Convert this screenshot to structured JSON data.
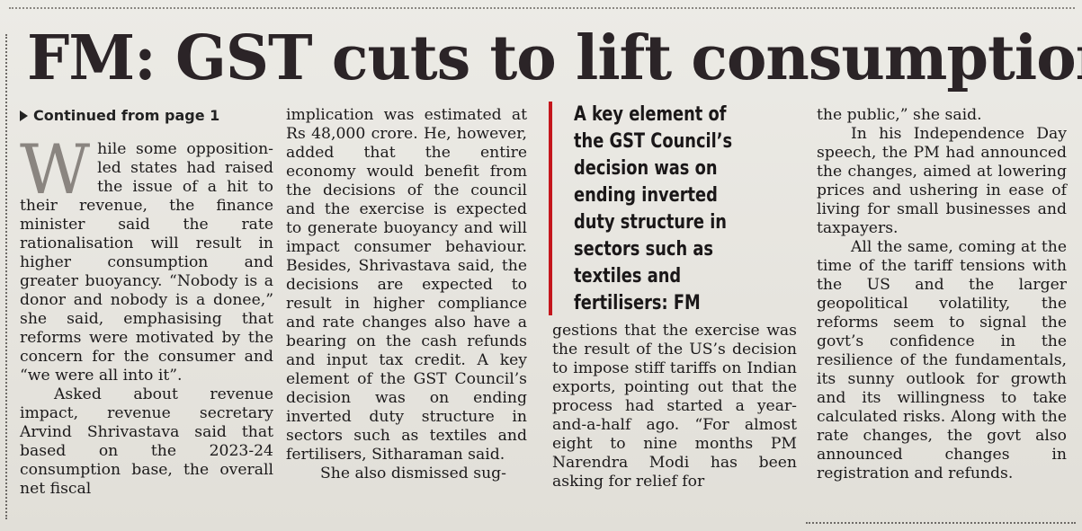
{
  "headline": "FM: GST cuts to lift consumption",
  "continued": "Continued from page 1",
  "col1": {
    "dropcap": "W",
    "p1": "hile some opposition-led states had raised the issue of a hit to their revenue, the finance minister said the rate rationalisation will result in higher consumption and greater buoyancy. “Nobody is a donor and nobody is a donee,” she said, emphasising that reforms were motivated by the concern for the consumer and “we were all into it”.",
    "p2": "Asked about revenue impact, revenue secretary Arvind Shrivastava said that based on the 2023-24 consumption base, the overall net fiscal"
  },
  "col2": {
    "p1": "implication was estimated at Rs 48,000 crore. He, however, added that the entire economy would benefit from the decisions of the council and the exercise is expected to generate buoyancy and will impact consumer behaviour. Besides, Shrivastava said, the decisions are expected to result in higher compliance and rate changes also have a bearing on the cash refunds and input tax credit. A key element of the GST Council’s decision was on ending inverted duty structure in sectors such as textiles and fertilisers, Sitharaman said.",
    "p2": "She also dismissed sug-"
  },
  "pullquote": {
    "lines": [
      "A key element of",
      "the GST Council’s",
      "decision was on",
      "ending inverted",
      "duty structure in",
      "sectors such as",
      "textiles and",
      "fertilisers: FM"
    ]
  },
  "col3": {
    "p1": "gestions that the exercise was the result of the US’s decision to impose stiff tariffs on Indian exports, pointing out that the process had started a year-and-a-half ago. “For almost eight to nine months PM Narendra Modi has been asking for relief for"
  },
  "col4": {
    "p1": "the public,” she said.",
    "p2": "In his Independence Day speech, the PM had announced the changes, aimed at lowering prices and ushering in ease of living for small businesses and taxpayers.",
    "p3": "All the same, coming at the time of the tariff tensions with the US and the larger geopolitical volatility, the reforms seem to signal the govt’s confidence in the resilience of the fundamentals, its sunny outlook for growth and its willingness to take calculated risks. Along with the rate changes, the govt also announced changes in registration and refunds."
  },
  "colors": {
    "rule": "#c4161c",
    "ink": "#1c1a1b",
    "paper": "#e9e7e1"
  }
}
